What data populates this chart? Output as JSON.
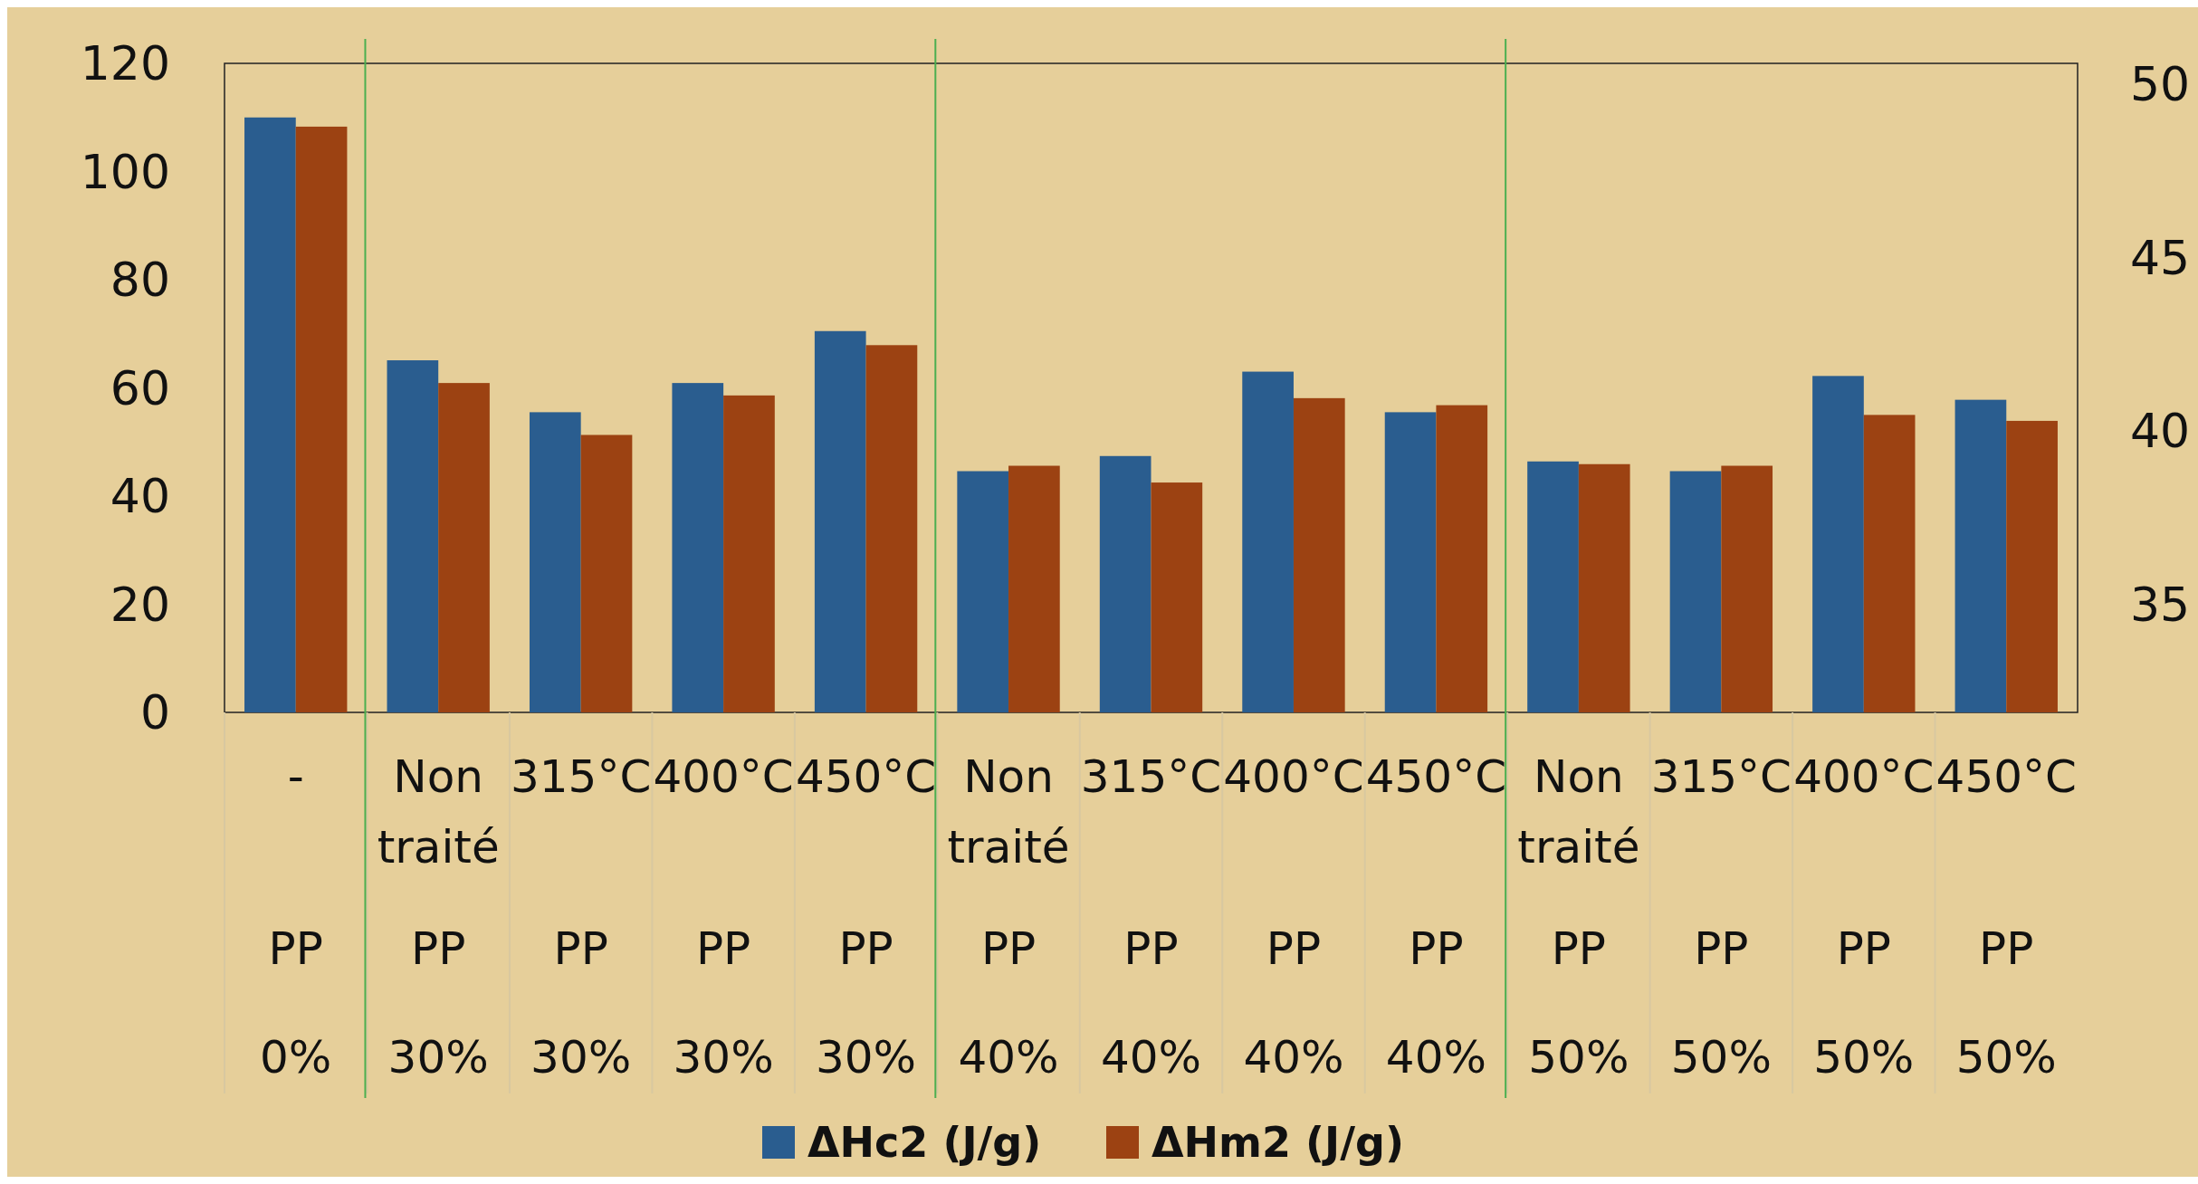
{
  "chart_data": {
    "type": "bar",
    "categories": [
      "-\nPP\n0%",
      "Non traité\nPP\n30%",
      "315°C\nPP\n30%",
      "400°C\nPP\n30%",
      "450°C\nPP\n30%",
      "Non traité\nPP\n40%",
      "315°C\nPP\n40%",
      "400°C\nPP\n40%",
      "450°C\nPP\n40%",
      "Non traité\nPP\n50%",
      "315°C\nPP\n50%",
      "400°C\nPP\n50%",
      "450°C\nPP\n50%"
    ],
    "series": [
      {
        "name": "ΔHc2 (J/g)",
        "color": "#2a5d8f",
        "values": [
          110,
          65.1,
          55.5,
          60.9,
          70.5,
          44.6,
          47.4,
          63.0,
          55.5,
          46.4,
          44.6,
          62.2,
          57.8
        ]
      },
      {
        "name": "ΔHm2 (J/g)",
        "color": "#9c4212",
        "values": [
          108.3,
          60.9,
          51.3,
          58.6,
          67.9,
          45.6,
          42.5,
          58.1,
          56.8,
          45.9,
          45.6,
          55.0,
          53.9
        ]
      }
    ],
    "ylim": [
      0,
      120
    ],
    "yticks": [
      0,
      20,
      40,
      60,
      80,
      100,
      120
    ],
    "y2lim": [
      31.9,
      50.6
    ],
    "y2ticks": [
      35,
      40,
      45,
      50
    ],
    "legend": "bottom",
    "grid": false
  }
}
